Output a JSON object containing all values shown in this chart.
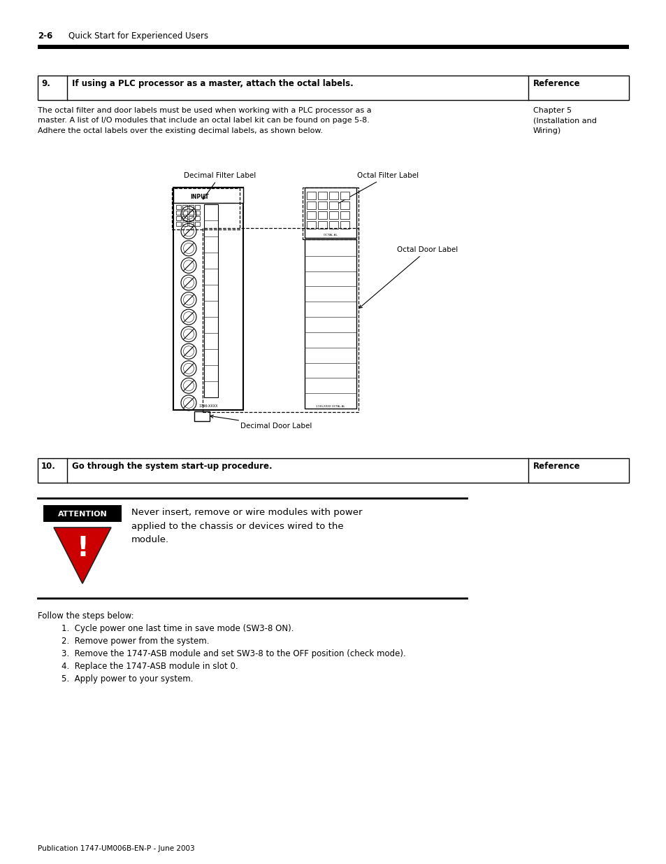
{
  "page_header_bold": "2-6",
  "page_header_text": "Quick Start for Experienced Users",
  "section9_num": "9.",
  "section9_title": "If using a PLC processor as a master, attach the octal labels.",
  "section9_ref_header": "Reference",
  "section9_body": "The octal filter and door labels must be used when working with a PLC processor as a\nmaster. A list of I/O modules that include an octal label kit can be found on page 5-8.\nAdhere the octal labels over the existing decimal labels, as shown below.",
  "section9_ref_body": "Chapter 5\n(Installation and\nWiring)",
  "label_decimal_filter": "Decimal Filter Label",
  "label_octal_filter": "Octal Filter Label",
  "label_octal_door": "Octal Door Label",
  "label_decimal_door": "Decimal Door Label",
  "section10_num": "10.",
  "section10_title": "Go through the system start-up procedure.",
  "section10_ref_header": "Reference",
  "attention_label": "ATTENTION",
  "attention_text": "Never insert, remove or wire modules with power\napplied to the chassis or devices wired to the\nmodule.",
  "follow_steps": "Follow the steps below:",
  "steps": [
    "Cycle power one last time in save mode (SW3-8 ON).",
    "Remove power from the system.",
    "Remove the 1747-ASB module and set SW3-8 to the OFF position (check mode).",
    "Replace the 1747-ASB module in slot 0.",
    "Apply power to your system."
  ],
  "footer": "Publication 1747-UM006B-EN-P - June 2003",
  "bg_color": "#ffffff",
  "text_color": "#000000",
  "header_bar_color": "#000000",
  "table_border_color": "#000000",
  "attention_bg": "#000000",
  "attention_text_color": "#ffffff",
  "attention_warning_bg": "#cc0000"
}
